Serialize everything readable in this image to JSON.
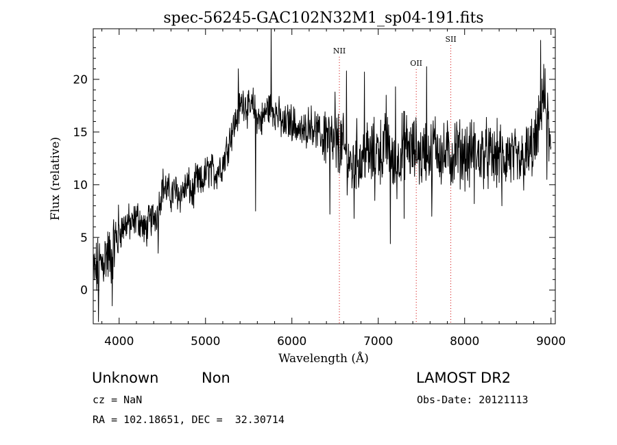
{
  "chart_data": {
    "type": "line",
    "title": "spec-56245-GAC102N32M1_sp04-191.fits",
    "xlabel": "Wavelength (Å)",
    "ylabel": "Flux (relative)",
    "xlim": [
      3700,
      9050
    ],
    "ylim": [
      -3.2,
      24.8
    ],
    "x_ticks": [
      4000,
      5000,
      6000,
      7000,
      8000,
      9000
    ],
    "y_ticks": [
      0,
      5,
      10,
      15,
      20
    ],
    "grid": false,
    "series": [
      {
        "color": "#000000",
        "x": [
          3700,
          3750,
          3800,
          3850,
          3900,
          3950,
          4000,
          4050,
          4100,
          4150,
          4200,
          4250,
          4300,
          4350,
          4400,
          4450,
          4500,
          4550,
          4600,
          4650,
          4700,
          4750,
          4800,
          4850,
          4900,
          4950,
          5000,
          5050,
          5100,
          5150,
          5200,
          5250,
          5300,
          5350,
          5400,
          5450,
          5500,
          5550,
          5600,
          5650,
          5700,
          5750,
          5800,
          5850,
          5900,
          5950,
          6000,
          6050,
          6100,
          6150,
          6200,
          6250,
          6300,
          6350,
          6400,
          6450,
          6500,
          6550,
          6600,
          6650,
          6700,
          6750,
          6800,
          6850,
          6900,
          6950,
          7000,
          7050,
          7100,
          7150,
          7200,
          7250,
          7300,
          7350,
          7400,
          7450,
          7500,
          7550,
          7600,
          7650,
          7700,
          7750,
          7800,
          7850,
          7900,
          7950,
          8000,
          8050,
          8100,
          8150,
          8200,
          8250,
          8300,
          8350,
          8400,
          8450,
          8500,
          8550,
          8600,
          8650,
          8700,
          8750,
          8800,
          8850,
          8900,
          8950,
          9000
        ],
        "y": [
          1.5,
          2.0,
          2.5,
          3.5,
          3.0,
          4.5,
          5.5,
          6.0,
          6.5,
          6.0,
          7.0,
          6.5,
          5.5,
          6.5,
          7.0,
          7.5,
          10.0,
          9.5,
          9.0,
          9.5,
          9.0,
          9.5,
          10.0,
          9.0,
          10.5,
          10.0,
          11.0,
          11.5,
          11.0,
          11.5,
          12.0,
          13.5,
          15.0,
          16.0,
          17.5,
          18.0,
          17.0,
          17.5,
          16.5,
          16.0,
          17.0,
          17.5,
          17.0,
          16.5,
          15.5,
          16.0,
          16.0,
          15.5,
          15.0,
          15.0,
          16.0,
          15.5,
          15.0,
          14.5,
          15.0,
          14.0,
          13.5,
          14.0,
          13.5,
          12.5,
          11.5,
          13.0,
          12.0,
          13.5,
          12.5,
          13.0,
          13.5,
          13.0,
          14.0,
          12.5,
          11.0,
          13.0,
          14.0,
          13.5,
          13.0,
          13.5,
          12.5,
          13.5,
          13.0,
          14.0,
          13.5,
          12.5,
          13.0,
          12.5,
          13.5,
          13.0,
          13.0,
          12.5,
          13.5,
          12.5,
          13.0,
          13.0,
          12.5,
          12.5,
          13.0,
          12.0,
          13.0,
          12.5,
          12.0,
          12.0,
          12.5,
          13.0,
          13.5,
          14.5,
          19.0,
          17.0,
          12.5
        ]
      }
    ],
    "spikes": [
      {
        "x": 3760,
        "y": -3.0
      },
      {
        "x": 3920,
        "y": -1.5
      },
      {
        "x": 4450,
        "y": 3.5
      },
      {
        "x": 5380,
        "y": 21.0
      },
      {
        "x": 5580,
        "y": 7.5
      },
      {
        "x": 5760,
        "y": 24.8
      },
      {
        "x": 6440,
        "y": 7.2
      },
      {
        "x": 6500,
        "y": 18.8
      },
      {
        "x": 6630,
        "y": 20.8
      },
      {
        "x": 6720,
        "y": 6.8
      },
      {
        "x": 6840,
        "y": 20.7
      },
      {
        "x": 6960,
        "y": 8.5
      },
      {
        "x": 7090,
        "y": 18.5
      },
      {
        "x": 7140,
        "y": 4.4
      },
      {
        "x": 7200,
        "y": 19.3
      },
      {
        "x": 7300,
        "y": 6.8
      },
      {
        "x": 7560,
        "y": 21.2
      },
      {
        "x": 7620,
        "y": 7.0
      },
      {
        "x": 8110,
        "y": 8.2
      },
      {
        "x": 8430,
        "y": 8.0
      },
      {
        "x": 8880,
        "y": 23.7
      },
      {
        "x": 8950,
        "y": 10.5
      }
    ],
    "annotations": [
      {
        "label": "NII",
        "x": 6550
      },
      {
        "label": "OII",
        "x": 7440
      },
      {
        "label": "SII",
        "x": 7840
      }
    ]
  },
  "info": {
    "class": "Unknown",
    "subclass": "Non",
    "survey": "LAMOST DR2",
    "cz": "cz = NaN",
    "obs_date": "Obs-Date: 20121113",
    "coords": "RA = 102.18651, DEC =  32.30714"
  }
}
